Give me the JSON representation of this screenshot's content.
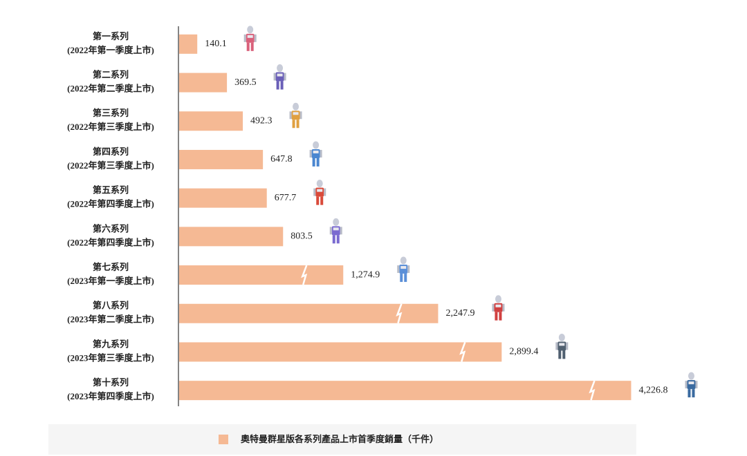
{
  "chart_data": {
    "type": "bar",
    "orientation": "horizontal",
    "categories": [
      [
        "第一系列",
        "(2022年第一季度上市)"
      ],
      [
        "第二系列",
        "(2022年第二季度上市)"
      ],
      [
        "第三系列",
        "(2022年第三季度上市)"
      ],
      [
        "第四系列",
        "(2022年第三季度上市)"
      ],
      [
        "第五系列",
        "(2022年第四季度上市)"
      ],
      [
        "第六系列",
        "(2022年第四季度上市)"
      ],
      [
        "第七系列",
        "(2023年第一季度上市)"
      ],
      [
        "第八系列",
        "(2023年第二季度上市)"
      ],
      [
        "第九系列",
        "(2023年第三季度上市)"
      ],
      [
        "第十系列",
        "(2023年第四季度上市)"
      ]
    ],
    "series": [
      {
        "name": "奧特曼群星版各系列產品上市首季度銷量（千件）",
        "color": "#f5b994",
        "values": [
          140.1,
          369.5,
          492.3,
          647.8,
          677.7,
          803.5,
          1274.9,
          2247.9,
          2899.4,
          4226.8
        ],
        "value_labels": [
          "140.1",
          "369.5",
          "492.3",
          "647.8",
          "677.7",
          "803.5",
          "1,274.9",
          "2,247.9",
          "2,899.4",
          "4,226.8"
        ]
      }
    ],
    "axis_break": true
  }
}
